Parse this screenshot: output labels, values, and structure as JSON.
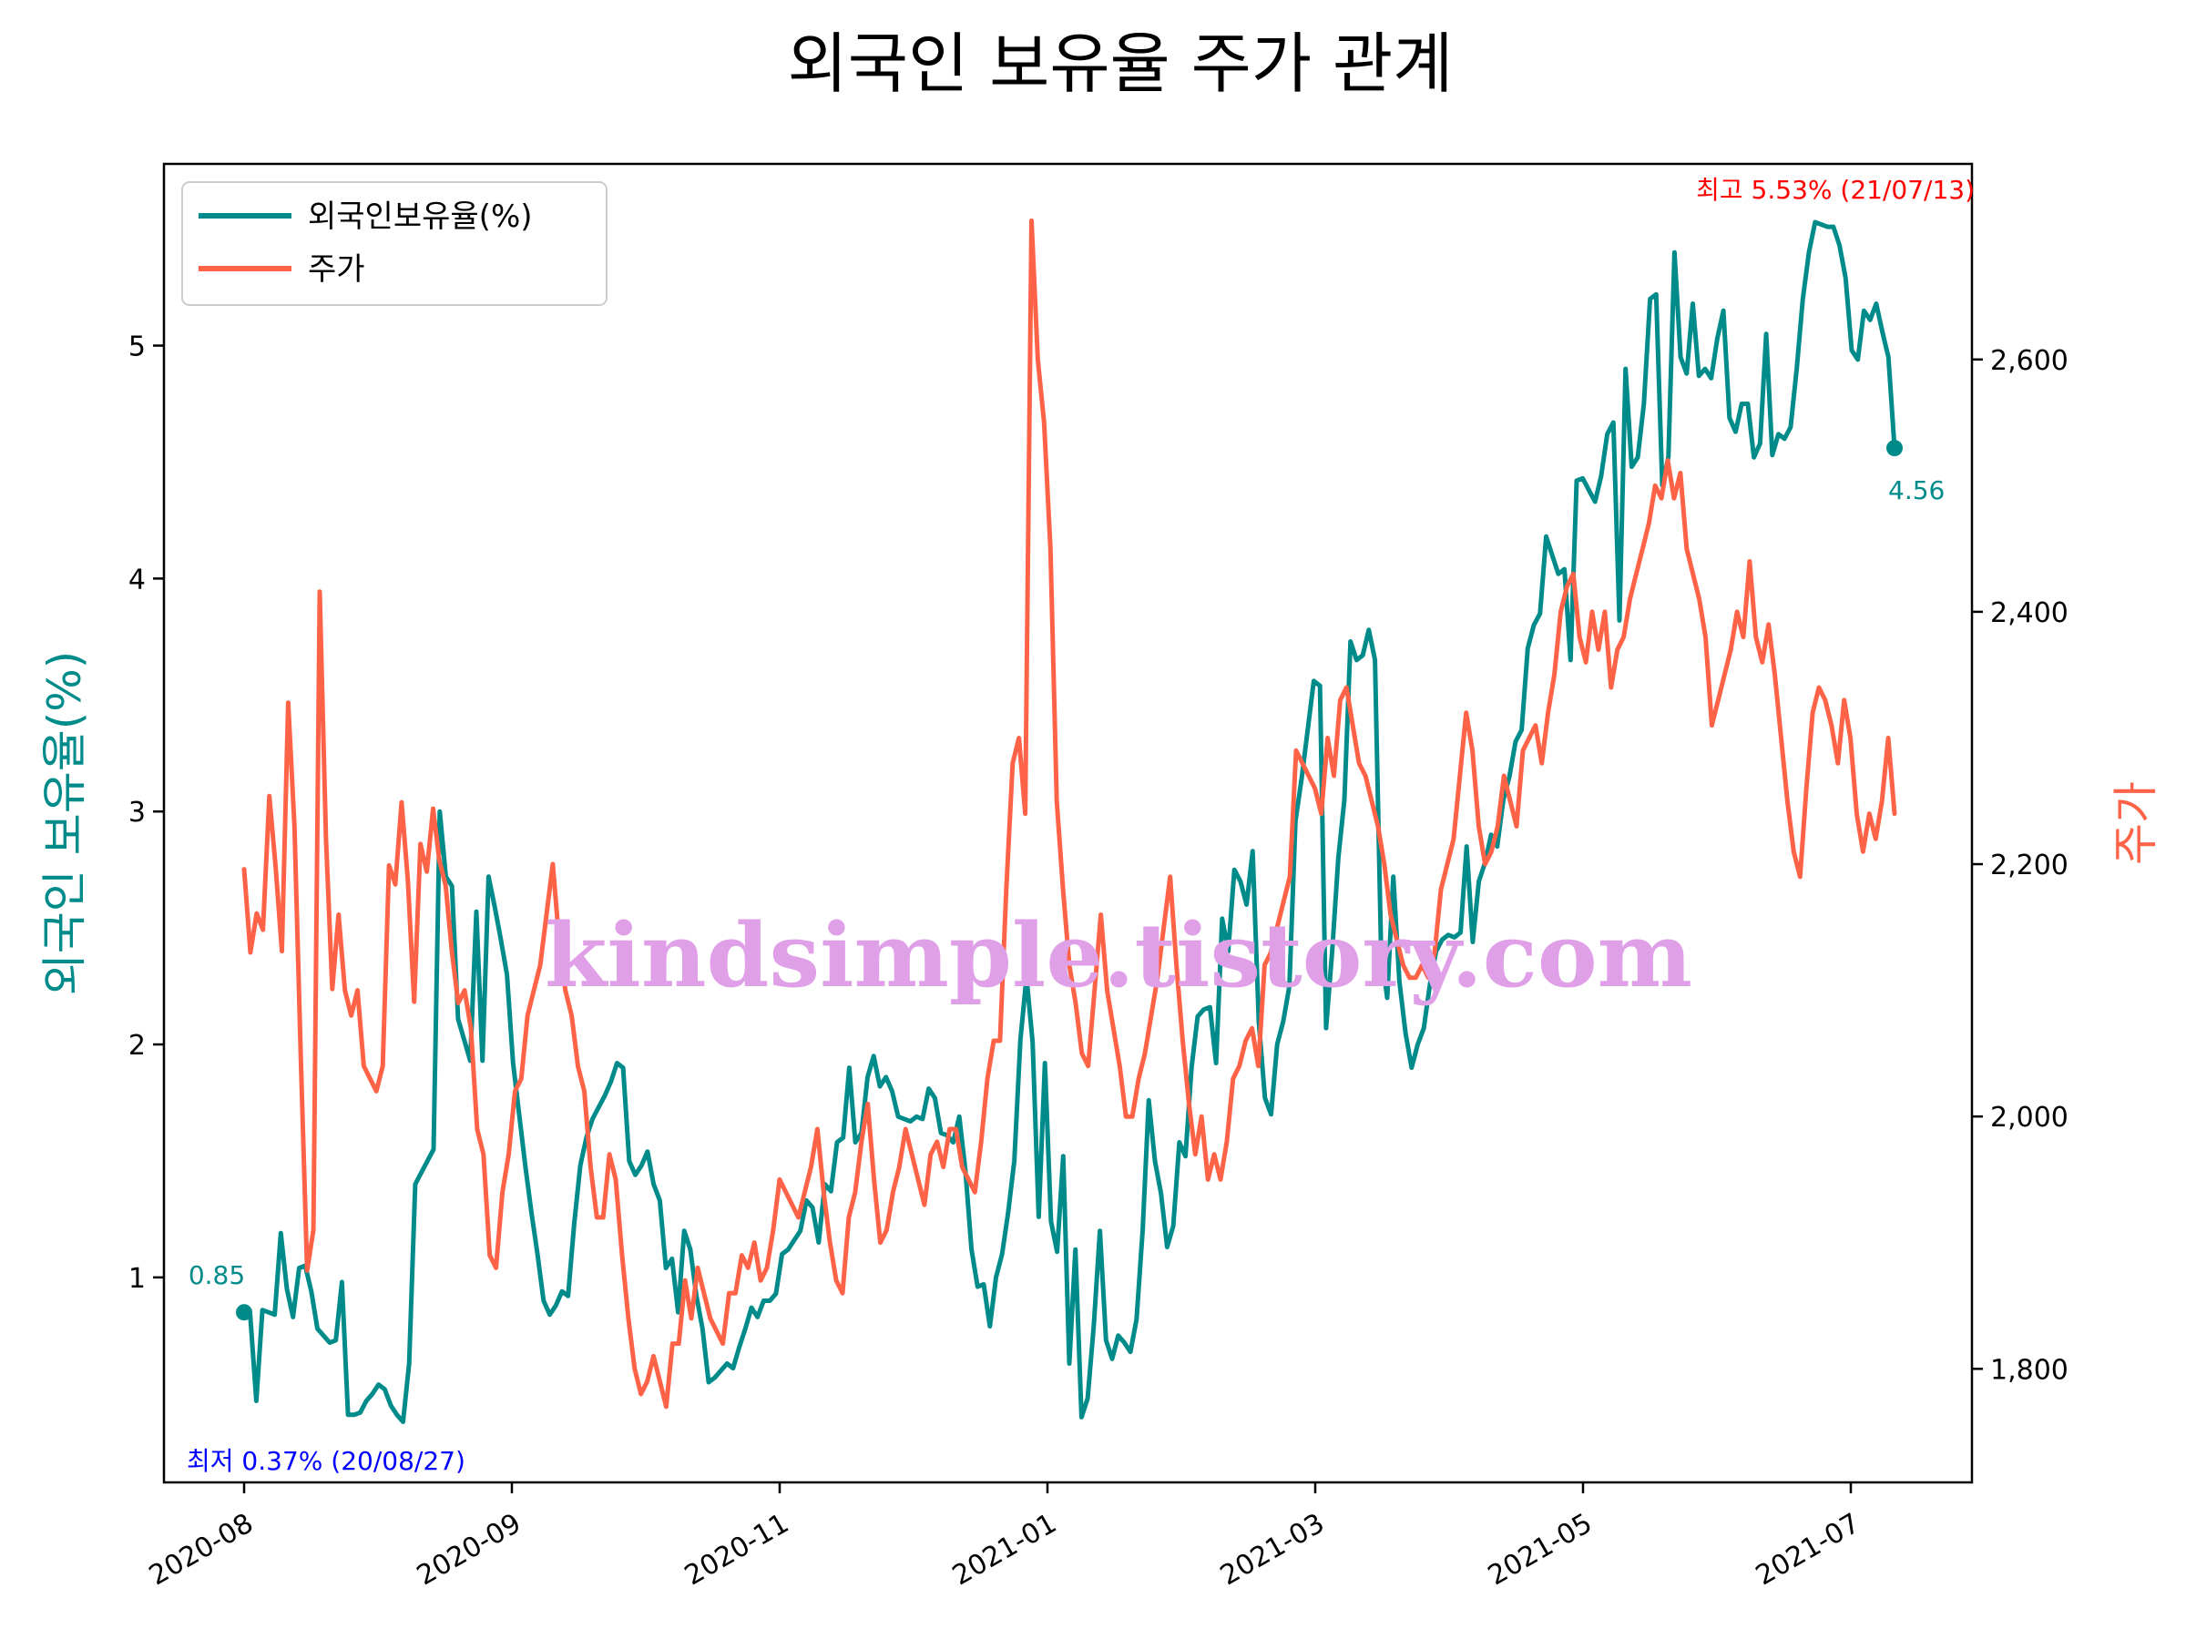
{
  "chart_data": {
    "type": "line",
    "title": "외국인 보유율 주가 관계",
    "ylabel_left": "외국인 보유율(%)",
    "ylabel_right": "주가",
    "x_tick_labels": [
      "2020-08",
      "2020-09",
      "2020-11",
      "2021-01",
      "2021-03",
      "2021-05",
      "2021-07"
    ],
    "left_ticks": [
      "1",
      "2",
      "3",
      "4",
      "5"
    ],
    "right_ticks": [
      "1,800",
      "2,000",
      "2,200",
      "2,400",
      "2,600"
    ],
    "ylim_left": [
      0.12,
      5.78
    ],
    "ylim_right": [
      1710,
      2755
    ],
    "legend_position": "top-left",
    "series": [
      {
        "name": "외국인보유율(%)",
        "axis": "left",
        "color": "#008b8b",
        "values": [
          0.85,
          0.84,
          0.47,
          0.86,
          0.85,
          0.84,
          1.19,
          0.95,
          0.83,
          1.04,
          1.05,
          0.94,
          0.78,
          0.75,
          0.72,
          0.73,
          0.98,
          0.41,
          0.41,
          0.42,
          0.47,
          0.5,
          0.54,
          0.52,
          0.45,
          0.41,
          0.38,
          0.63,
          1.4,
          1.45,
          1.5,
          1.55,
          3.0,
          2.72,
          2.68,
          2.11,
          2.02,
          1.93,
          2.57,
          1.93,
          2.72,
          2.59,
          2.45,
          2.3,
          1.92,
          1.7,
          1.48,
          1.28,
          1.1,
          0.9,
          0.84,
          0.88,
          0.94,
          0.92,
          1.23,
          1.48,
          1.6,
          1.68,
          1.73,
          1.78,
          1.84,
          1.92,
          1.9,
          1.5,
          1.44,
          1.48,
          1.54,
          1.4,
          1.33,
          1.04,
          1.08,
          0.85,
          1.2,
          1.12,
          0.92,
          0.78,
          0.55,
          0.57,
          0.6,
          0.63,
          0.61,
          0.7,
          0.78,
          0.87,
          0.83,
          0.9,
          0.9,
          0.93,
          1.1,
          1.12,
          1.16,
          1.2,
          1.33,
          1.3,
          1.15,
          1.4,
          1.37,
          1.58,
          1.6,
          1.9,
          1.58,
          1.62,
          1.86,
          1.95,
          1.82,
          1.86,
          1.8,
          1.69,
          1.68,
          1.67,
          1.69,
          1.68,
          1.81,
          1.77,
          1.62,
          1.61,
          1.58,
          1.69,
          1.46,
          1.12,
          0.96,
          0.97,
          0.79,
          1.0,
          1.1,
          1.28,
          1.5,
          2.02,
          2.29,
          2.01,
          1.26,
          1.92,
          1.24,
          1.11,
          1.52,
          0.63,
          1.12,
          0.4,
          0.48,
          0.79,
          1.2,
          0.73,
          0.65,
          0.75,
          0.72,
          0.68,
          0.82,
          1.2,
          1.76,
          1.5,
          1.36,
          1.13,
          1.22,
          1.58,
          1.52,
          1.9,
          2.12,
          2.15,
          2.16,
          1.92,
          2.54,
          2.4,
          2.75,
          2.7,
          2.6,
          2.83,
          2.1,
          1.77,
          1.7,
          2.0,
          2.1,
          2.25,
          2.96,
          3.14,
          3.35,
          3.56,
          3.54,
          2.07,
          2.4,
          2.8,
          3.05,
          3.73,
          3.65,
          3.67,
          3.78,
          3.65,
          2.4,
          2.2,
          2.72,
          2.27,
          2.05,
          1.9,
          2.0,
          2.07,
          2.26,
          2.4,
          2.45,
          2.47,
          2.46,
          2.48,
          2.85,
          2.44,
          2.7,
          2.78,
          2.9,
          2.85,
          3.05,
          3.15,
          3.3,
          3.35,
          3.7,
          3.8,
          3.85,
          4.18,
          4.1,
          4.02,
          4.04,
          3.65,
          4.42,
          4.43,
          4.38,
          4.33,
          4.44,
          4.62,
          4.67,
          3.82,
          4.9,
          4.48,
          4.52,
          4.75,
          5.2,
          5.22,
          4.4,
          4.52,
          5.4,
          4.95,
          4.88,
          5.18,
          4.87,
          4.9,
          4.86,
          5.03,
          5.15,
          4.69,
          4.63,
          4.75,
          4.75,
          4.52,
          4.58,
          5.05,
          4.53,
          4.62,
          4.6,
          4.65,
          4.9,
          5.2,
          5.4,
          5.53,
          5.52,
          5.51,
          5.51,
          5.43,
          5.29,
          4.98,
          4.94,
          5.15,
          5.11,
          5.18,
          5.06,
          4.95,
          4.56
        ]
      },
      {
        "name": "주가",
        "axis": "right",
        "color": "#ff6347",
        "values": [
          2196,
          2130,
          2161,
          2148,
          2254,
          2198,
          2131,
          2328,
          2230,
          2048,
          1878,
          1910,
          2416,
          2220,
          2101,
          2160,
          2100,
          2080,
          2100,
          2040,
          2030,
          2020,
          2040,
          2199,
          2184,
          2249,
          2187,
          2091,
          2216,
          2194,
          2244,
          2203,
          2183,
          2130,
          2090,
          2100,
          2070,
          1990,
          1970,
          1890,
          1880,
          1940,
          1970,
          2020,
          2030,
          2080,
          2100,
          2120,
          2160,
          2200,
          2140,
          2100,
          2080,
          2040,
          2020,
          1960,
          1920,
          1920,
          1970,
          1950,
          1890,
          1840,
          1800,
          1780,
          1790,
          1810,
          1790,
          1770,
          1820,
          1820,
          1870,
          1840,
          1880,
          1860,
          1840,
          1830,
          1820,
          1860,
          1860,
          1890,
          1880,
          1900,
          1870,
          1880,
          1910,
          1950,
          1940,
          1930,
          1920,
          1940,
          1960,
          1990,
          1940,
          1900,
          1870,
          1860,
          1920,
          1940,
          1980,
          2010,
          1950,
          1900,
          1910,
          1940,
          1960,
          1990,
          1970,
          1950,
          1930,
          1970,
          1980,
          1960,
          1990,
          1990,
          1960,
          1950,
          1940,
          1980,
          2030,
          2060,
          2060,
          2180,
          2280,
          2300,
          2240,
          2710,
          2600,
          2550,
          2450,
          2250,
          2180,
          2120,
          2090,
          2050,
          2040,
          2100,
          2160,
          2100,
          2070,
          2040,
          2000,
          2000,
          2030,
          2050,
          2080,
          2110,
          2150,
          2190,
          2120,
          2060,
          2010,
          1970,
          2000,
          1950,
          1970,
          1950,
          1980,
          2030,
          2040,
          2060,
          2070,
          2040,
          2120,
          2130,
          2150,
          2170,
          2190,
          2290,
          2280,
          2270,
          2260,
          2240,
          2300,
          2270,
          2330,
          2340,
          2310,
          2280,
          2270,
          2250,
          2230,
          2200,
          2160,
          2140,
          2120,
          2110,
          2110,
          2120,
          2110,
          2130,
          2180,
          2200,
          2220,
          2270,
          2320,
          2290,
          2230,
          2200,
          2210,
          2230,
          2270,
          2250,
          2230,
          2290,
          2300,
          2310,
          2280,
          2320,
          2350,
          2400,
          2420,
          2430,
          2380,
          2360,
          2400,
          2370,
          2400,
          2340,
          2370,
          2380,
          2410,
          2430,
          2450,
          2470,
          2500,
          2490,
          2520,
          2490,
          2510,
          2450,
          2430,
          2410,
          2380,
          2310,
          2330,
          2350,
          2370,
          2400,
          2380,
          2440,
          2380,
          2360,
          2390,
          2350,
          2300,
          2250,
          2210,
          2190,
          2260,
          2320,
          2340,
          2330,
          2310,
          2280,
          2330,
          2300,
          2240,
          2210,
          2240,
          2220,
          2250,
          2300,
          2240
        ]
      }
    ],
    "annotations": {
      "start_value": "0.85",
      "end_value": "4.56",
      "low_label": "최저 0.37% (20/08/27)",
      "high_label": "최고 5.53% (21/07/13)"
    },
    "watermark": "kindsimple.tistory.com"
  }
}
